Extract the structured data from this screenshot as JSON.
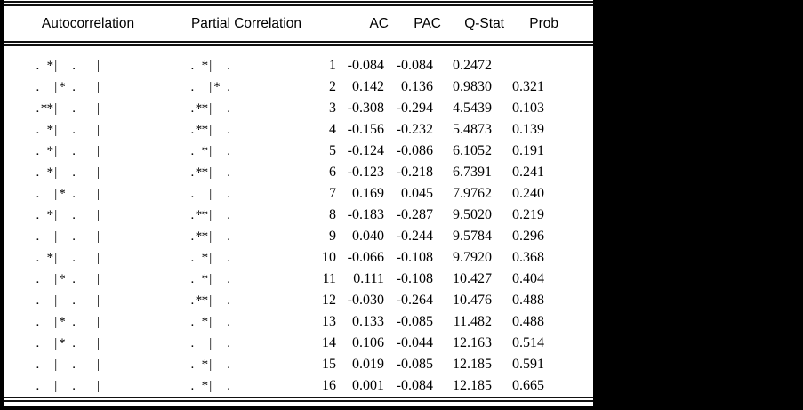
{
  "header": {
    "autocorrelation": "Autocorrelation",
    "partial_correlation": "Partial Correlation",
    "ac": "AC",
    "pac": "PAC",
    "qstat": "Q-Stat",
    "prob": "Prob"
  },
  "rows": [
    {
      "lag": "1",
      "ac_bar": ". *|  .   |",
      "pac_bar": ". *|  .   |",
      "ac": "-0.084",
      "pac": "-0.084",
      "qstat": "0.2472",
      "prob": ""
    },
    {
      "lag": "2",
      "ac_bar": ".  |* .   |",
      "pac_bar": ".  |* .   |",
      "ac": "0.142",
      "pac": "0.136",
      "qstat": "0.9830",
      "prob": "0.321"
    },
    {
      "lag": "3",
      "ac_bar": ".**|  .   |",
      "pac_bar": ".**|  .   |",
      "ac": "-0.308",
      "pac": "-0.294",
      "qstat": "4.5439",
      "prob": "0.103"
    },
    {
      "lag": "4",
      "ac_bar": ". *|  .   |",
      "pac_bar": ".**|  .   |",
      "ac": "-0.156",
      "pac": "-0.232",
      "qstat": "5.4873",
      "prob": "0.139"
    },
    {
      "lag": "5",
      "ac_bar": ". *|  .   |",
      "pac_bar": ". *|  .   |",
      "ac": "-0.124",
      "pac": "-0.086",
      "qstat": "6.1052",
      "prob": "0.191"
    },
    {
      "lag": "6",
      "ac_bar": ". *|  .   |",
      "pac_bar": ".**|  .   |",
      "ac": "-0.123",
      "pac": "-0.218",
      "qstat": "6.7391",
      "prob": "0.241"
    },
    {
      "lag": "7",
      "ac_bar": ".  |* .   |",
      "pac_bar": ".  |  .   |",
      "ac": "0.169",
      "pac": "0.045",
      "qstat": "7.9762",
      "prob": "0.240"
    },
    {
      "lag": "8",
      "ac_bar": ". *|  .   |",
      "pac_bar": ".**|  .   |",
      "ac": "-0.183",
      "pac": "-0.287",
      "qstat": "9.5020",
      "prob": "0.219"
    },
    {
      "lag": "9",
      "ac_bar": ".  |  .   |",
      "pac_bar": ".**|  .   |",
      "ac": "0.040",
      "pac": "-0.244",
      "qstat": "9.5784",
      "prob": "0.296"
    },
    {
      "lag": "10",
      "ac_bar": ". *|  .   |",
      "pac_bar": ". *|  .   |",
      "ac": "-0.066",
      "pac": "-0.108",
      "qstat": "9.7920",
      "prob": "0.368"
    },
    {
      "lag": "11",
      "ac_bar": ".  |* .   |",
      "pac_bar": ". *|  .   |",
      "ac": "0.111",
      "pac": "-0.108",
      "qstat": "10.427",
      "prob": "0.404"
    },
    {
      "lag": "12",
      "ac_bar": ".  |  .   |",
      "pac_bar": ".**|  .   |",
      "ac": "-0.030",
      "pac": "-0.264",
      "qstat": "10.476",
      "prob": "0.488"
    },
    {
      "lag": "13",
      "ac_bar": ".  |* .   |",
      "pac_bar": ". *|  .   |",
      "ac": "0.133",
      "pac": "-0.085",
      "qstat": "11.482",
      "prob": "0.488"
    },
    {
      "lag": "14",
      "ac_bar": ".  |* .   |",
      "pac_bar": ".  |  .   |",
      "ac": "0.106",
      "pac": "-0.044",
      "qstat": "12.163",
      "prob": "0.514"
    },
    {
      "lag": "15",
      "ac_bar": ".  |  .   |",
      "pac_bar": ". *|  .   |",
      "ac": "0.019",
      "pac": "-0.085",
      "qstat": "12.185",
      "prob": "0.591"
    },
    {
      "lag": "16",
      "ac_bar": ".  |  .   |",
      "pac_bar": ". *|  .   |",
      "ac": "0.001",
      "pac": "-0.084",
      "qstat": "12.185",
      "prob": "0.665"
    }
  ]
}
